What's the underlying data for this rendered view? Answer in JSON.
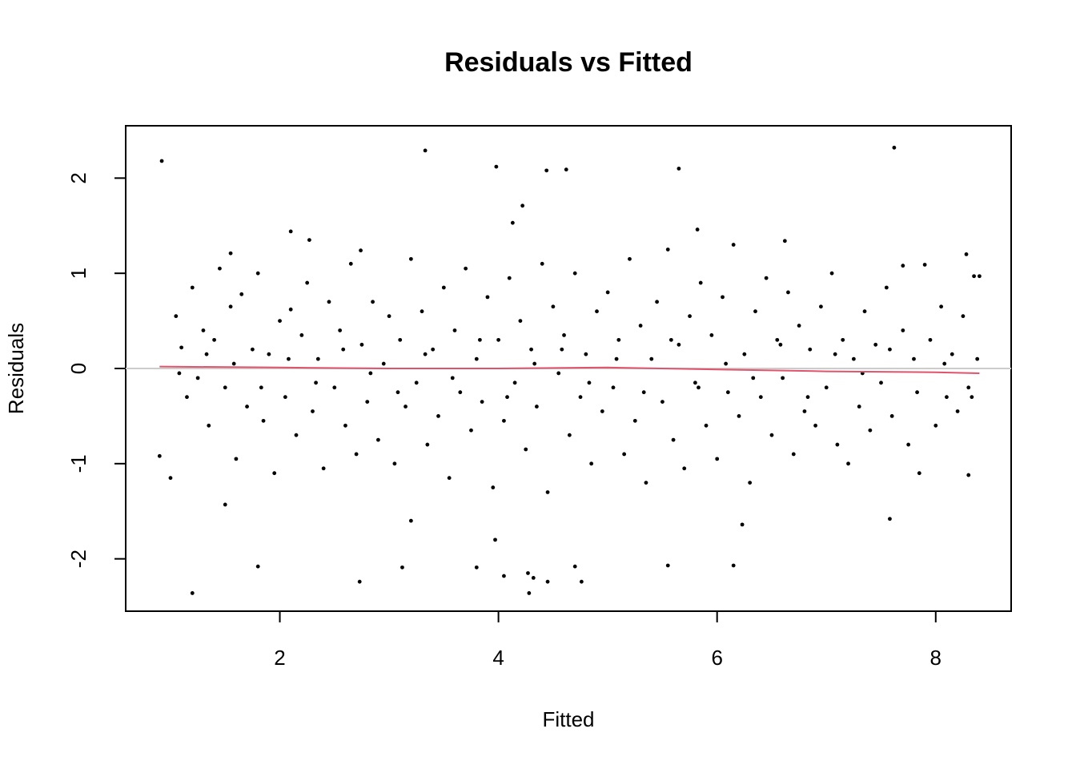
{
  "chart_data": {
    "type": "scatter",
    "title": "Residuals vs Fitted",
    "x_label": "Fitted",
    "y_label": "Residuals",
    "xlim": [
      0.59,
      8.69
    ],
    "ylim": [
      -2.55,
      2.55
    ],
    "xticks": [
      2,
      4,
      6,
      8
    ],
    "yticks": [
      -2,
      -1,
      0,
      1,
      2
    ],
    "hline": 0,
    "hline_color": "#cccccc",
    "series": [
      {
        "color": "#000000",
        "x": [
          0.92,
          3.33,
          3.98,
          4.22,
          4.13,
          4.44,
          4.62,
          5.65,
          7.62,
          1.2,
          1.8,
          2.73,
          3.12,
          3.8,
          3.97,
          4.05,
          4.27,
          4.28,
          4.32,
          4.45,
          4.7,
          4.76,
          5.55,
          6.15,
          7.58,
          1.5,
          0.9,
          1.0,
          6.23,
          3.2,
          8.3,
          8.28,
          8.35,
          8.4,
          2.1,
          2.27,
          1.55,
          2.74,
          5.82,
          6.62,
          7.7,
          7.9,
          1.05,
          1.1,
          1.15,
          1.2,
          1.25,
          1.3,
          1.35,
          1.4,
          1.45,
          1.5,
          1.55,
          1.6,
          1.65,
          1.7,
          1.75,
          1.8,
          1.85,
          1.9,
          1.95,
          2.0,
          2.05,
          2.1,
          2.15,
          2.2,
          2.25,
          2.3,
          2.35,
          2.4,
          2.45,
          2.5,
          2.55,
          2.6,
          2.65,
          2.7,
          2.75,
          2.8,
          2.85,
          2.9,
          2.95,
          3.0,
          3.05,
          3.1,
          3.15,
          3.2,
          3.25,
          3.3,
          3.35,
          3.4,
          3.45,
          3.5,
          3.55,
          3.6,
          3.65,
          3.7,
          3.75,
          3.8,
          3.85,
          3.9,
          3.95,
          4.0,
          4.05,
          4.1,
          4.15,
          4.2,
          4.25,
          4.3,
          4.35,
          4.4,
          4.45,
          4.5,
          4.55,
          4.6,
          4.65,
          4.7,
          4.75,
          4.8,
          4.85,
          4.9,
          4.95,
          5.0,
          5.05,
          5.1,
          5.15,
          5.2,
          5.25,
          5.3,
          5.35,
          5.4,
          5.45,
          5.5,
          5.55,
          5.6,
          5.65,
          5.7,
          5.75,
          5.8,
          5.85,
          5.9,
          5.95,
          6.0,
          6.05,
          6.1,
          6.15,
          6.2,
          6.25,
          6.3,
          6.35,
          6.4,
          6.45,
          6.5,
          6.55,
          6.6,
          6.65,
          6.7,
          6.75,
          6.8,
          6.85,
          6.9,
          6.95,
          7.0,
          7.05,
          7.1,
          7.15,
          7.2,
          7.25,
          7.3,
          7.35,
          7.4,
          7.45,
          7.5,
          7.55,
          7.6,
          7.7,
          7.75,
          7.8,
          7.85,
          7.95,
          8.0,
          8.05,
          8.1,
          8.15,
          8.2,
          8.25,
          8.3,
          8.38,
          1.08,
          1.33,
          1.58,
          1.83,
          2.08,
          2.33,
          2.58,
          2.83,
          3.08,
          3.33,
          3.58,
          3.83,
          4.08,
          4.33,
          4.58,
          4.83,
          5.08,
          5.33,
          5.58,
          5.83,
          6.08,
          6.33,
          6.58,
          6.83,
          7.08,
          7.33,
          7.58,
          7.83,
          8.08,
          8.33
        ],
        "values": [
          2.18,
          2.29,
          2.12,
          1.71,
          1.53,
          2.08,
          2.09,
          2.1,
          2.32,
          -2.36,
          -2.08,
          -2.24,
          -2.09,
          -2.09,
          -1.8,
          -2.18,
          -2.15,
          -2.36,
          -2.2,
          -2.24,
          -2.08,
          -2.24,
          -2.07,
          -2.07,
          -1.58,
          -1.43,
          -0.92,
          -1.15,
          -1.64,
          -1.6,
          -1.12,
          1.2,
          0.97,
          0.97,
          1.44,
          1.35,
          1.21,
          1.24,
          1.46,
          1.34,
          1.08,
          1.09,
          0.55,
          0.22,
          -0.3,
          0.85,
          -0.1,
          0.4,
          -0.6,
          0.3,
          1.05,
          -0.2,
          0.65,
          -0.95,
          0.78,
          -0.4,
          0.2,
          1.0,
          -0.55,
          0.15,
          -1.1,
          0.5,
          -0.3,
          0.62,
          -0.7,
          0.35,
          0.9,
          -0.45,
          0.1,
          -1.05,
          0.7,
          -0.2,
          0.4,
          -0.6,
          1.1,
          -0.9,
          0.25,
          -0.35,
          0.7,
          -0.75,
          0.05,
          0.55,
          -1.0,
          0.3,
          -0.4,
          1.15,
          -0.15,
          0.6,
          -0.8,
          0.2,
          -0.5,
          0.85,
          -1.15,
          0.4,
          -0.25,
          1.05,
          -0.65,
          0.1,
          -0.35,
          0.75,
          -1.25,
          0.3,
          -0.55,
          0.95,
          -0.15,
          0.5,
          -0.85,
          0.2,
          -0.4,
          1.1,
          -1.3,
          0.65,
          -0.05,
          0.35,
          -0.7,
          1.0,
          -0.3,
          0.15,
          -1.0,
          0.6,
          -0.45,
          0.8,
          -0.2,
          0.3,
          -0.9,
          1.15,
          -0.55,
          0.45,
          -1.2,
          0.1,
          0.7,
          -0.35,
          1.25,
          -0.75,
          0.25,
          -1.05,
          0.55,
          -0.15,
          0.9,
          -0.6,
          0.35,
          -0.95,
          0.75,
          -0.25,
          1.3,
          -0.5,
          0.15,
          -1.2,
          0.6,
          -0.3,
          0.95,
          -0.7,
          0.3,
          -0.1,
          0.8,
          -0.9,
          0.45,
          -0.45,
          0.2,
          -0.6,
          0.65,
          -0.2,
          1.0,
          -0.8,
          0.3,
          -1.0,
          0.1,
          -0.4,
          0.6,
          -0.65,
          0.25,
          -0.15,
          0.85,
          -0.5,
          0.4,
          -0.8,
          0.1,
          -1.1,
          0.3,
          -0.6,
          0.65,
          -0.3,
          0.15,
          -0.45,
          0.55,
          -0.2,
          0.1,
          -0.05,
          0.15,
          0.05,
          -0.2,
          0.1,
          -0.15,
          0.2,
          -0.05,
          -0.25,
          0.15,
          -0.1,
          0.3,
          -0.3,
          0.05,
          0.2,
          -0.15,
          0.1,
          -0.25,
          0.3,
          -0.2,
          0.05,
          -0.1,
          0.25,
          -0.3,
          0.15,
          -0.05,
          0.2,
          -0.25,
          0.05,
          -0.3
        ]
      },
      {
        "color": "#df536b",
        "line": true,
        "x": [
          0.9,
          2,
          3,
          4,
          5,
          6,
          7,
          8,
          8.4
        ],
        "values": [
          0.02,
          0.01,
          0.0,
          0.0,
          0.01,
          -0.01,
          -0.03,
          -0.04,
          -0.05
        ]
      }
    ]
  }
}
